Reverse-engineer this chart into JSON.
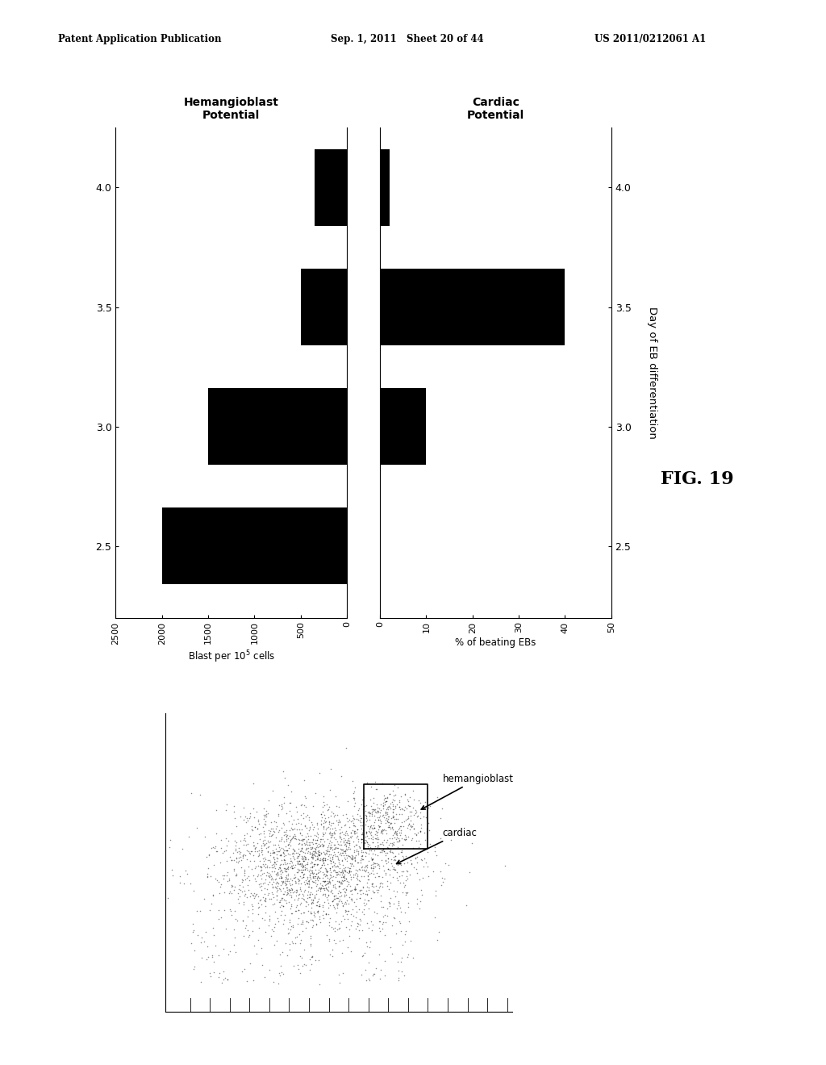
{
  "header_left": "Patent Application Publication",
  "header_mid": "Sep. 1, 2011   Sheet 20 of 44",
  "header_right": "US 2011/0212061 A1",
  "fig_label": "FIG. 19",
  "days": [
    2.5,
    3.0,
    3.5,
    4.0
  ],
  "hemangioblast_values": [
    2000,
    1500,
    500,
    350
  ],
  "cardiac_values": [
    0,
    10,
    40,
    2
  ],
  "hema_xlim": [
    0,
    2500
  ],
  "hema_xticks": [
    0,
    500,
    1000,
    1500,
    2000,
    2500
  ],
  "cardiac_xlim": [
    0,
    50
  ],
  "cardiac_xticks": [
    0,
    10,
    20,
    30,
    40,
    50
  ],
  "ylabel": "Day of EB differentiation",
  "hema_title": "Hemangioblast\nPotential",
  "cardiac_title": "Cardiac\nPotential",
  "bar_color": "#000000",
  "bg_color": "#ffffff"
}
